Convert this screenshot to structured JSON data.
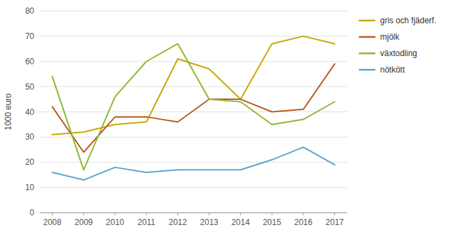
{
  "chart_data": {
    "type": "line",
    "y_label": "1000 euro",
    "x": [
      2008,
      2009,
      2010,
      2011,
      2012,
      2013,
      2014,
      2015,
      2016,
      2017
    ],
    "series": [
      {
        "name": "gris och fjäderf.",
        "color": "#C8A800",
        "values": [
          31,
          32,
          35,
          36,
          61,
          57,
          45,
          67,
          70,
          67
        ]
      },
      {
        "name": "mjölk",
        "color": "#B85C20",
        "values": [
          42,
          24,
          38,
          38,
          36,
          45,
          45,
          40,
          41,
          59
        ]
      },
      {
        "name": "växtodling",
        "color": "#8DB830",
        "values": [
          54,
          17,
          46,
          60,
          67,
          45,
          44,
          35,
          37,
          44
        ]
      },
      {
        "name": "nötkött",
        "color": "#5BA4CF",
        "values": [
          16,
          13,
          18,
          16,
          17,
          17,
          17,
          21,
          26,
          19
        ]
      }
    ],
    "xlim": [
      2007.6,
      2017.4
    ],
    "xticks": [
      2008,
      2009,
      2010,
      2011,
      2012,
      2013,
      2014,
      2015,
      2016,
      2017
    ],
    "ylim": [
      0,
      80
    ],
    "yticks": [
      0,
      10,
      20,
      30,
      40,
      50,
      60,
      70,
      80
    ],
    "grid": true,
    "legend": "right"
  }
}
